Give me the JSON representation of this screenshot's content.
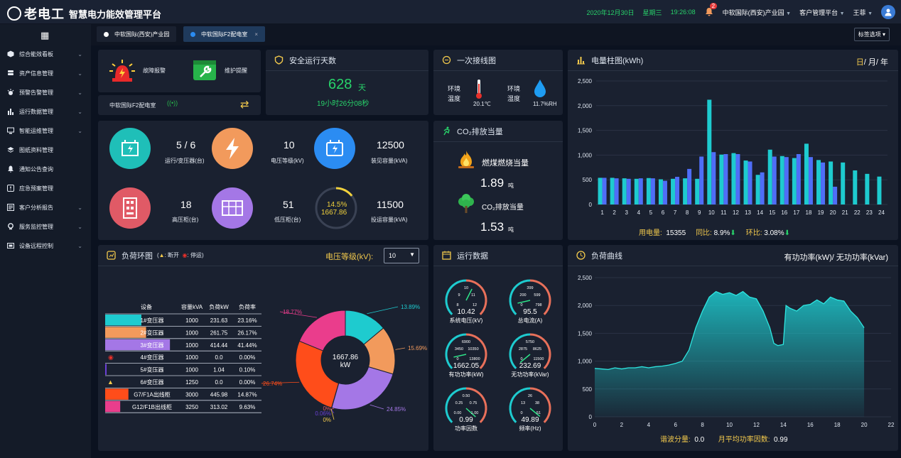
{
  "header": {
    "logo": "老电工",
    "app_title": "智慧电力能效管理平台",
    "date": "2020年12月30日",
    "weekday": "星期三",
    "time": "19:26:08",
    "notify_count": "2",
    "org": "中软国际(西安)产业园",
    "menu": "客户管理平台",
    "user": "王菲"
  },
  "sidebar": {
    "items": [
      {
        "label": "综合能效看板",
        "icon": "cube-icon"
      },
      {
        "label": "资产信息管理",
        "icon": "database-icon"
      },
      {
        "label": "预警告警管理",
        "icon": "alarm-icon"
      },
      {
        "label": "运行数据管理",
        "icon": "bar-chart-icon"
      },
      {
        "label": "智能运维管理",
        "icon": "monitor-icon"
      },
      {
        "label": "图纸资料管理",
        "icon": "layers-icon"
      },
      {
        "label": "通知公告查询",
        "icon": "bell-icon"
      },
      {
        "label": "应急预案管理",
        "icon": "emergency-icon"
      },
      {
        "label": "客户分析报告",
        "icon": "report-icon"
      },
      {
        "label": "服务监控管理",
        "icon": "service-icon"
      },
      {
        "label": "设备远程控制",
        "icon": "remote-control-icon"
      }
    ]
  },
  "tabs": [
    {
      "label": "中软国际(西安)产业园"
    },
    {
      "label": "中软国际F2配电室"
    }
  ],
  "tag_select": "标签选项",
  "alarm": {
    "fault": "故障报警",
    "maint": "维护提醒",
    "room": "中软国际F2配电室"
  },
  "safety": {
    "title": "安全运行天数",
    "days": "628",
    "unit": "天",
    "detail": "19小时26分08秒"
  },
  "oneline": {
    "title": "一次接线图",
    "temp_label": "环境温度",
    "temp": "20.1℃",
    "hum_label": "环境湿度",
    "hum": "11.7%RH"
  },
  "co2": {
    "title": "CO₂排放当量",
    "coal_label": "燃煤燃烧当量",
    "coal_value": "1.89",
    "coal_unit": "吨",
    "co2_label": "CO₂排放当量",
    "co2_value": "1.53",
    "co2_unit": "吨"
  },
  "stats": [
    {
      "value": "5 / 6",
      "label": "运行/变压器(台)",
      "color": "#1fbfb8"
    },
    {
      "value": "10",
      "label": "电压等级(kV)",
      "color": "#f29a5c"
    },
    {
      "value": "12500",
      "label": "装见容量(kVA)",
      "color": "#2b8cf2"
    },
    {
      "value": "18",
      "label": "高压柜(台)",
      "color": "#e05a66"
    },
    {
      "value": "51",
      "label": "低压柜(台)",
      "color": "#a477e6"
    },
    {
      "value": "11500",
      "label": "投运容量(kVA)",
      "color": "#ffffff"
    }
  ],
  "load_ring": {
    "pct": "14.5%",
    "pct_value": 14.5,
    "value": "1667.86"
  },
  "load_table": {
    "title": "负荷环图",
    "legend": {
      "open": "断开",
      "stop": "停运"
    },
    "voltage_label": "电压等级(kV):",
    "voltage_value": "10",
    "columns": [
      "设备",
      "容量kVA",
      "负荷kW",
      "负荷率"
    ],
    "rows": [
      {
        "name": "1#变压器",
        "cap": "1000",
        "load": "231.63",
        "rate": "23.16%",
        "color": "#1ecbcf",
        "fill": 23.16,
        "flag": ""
      },
      {
        "name": "2#变压器",
        "cap": "1000",
        "load": "261.75",
        "rate": "26.17%",
        "color": "#f29a5c",
        "fill": 26.17,
        "flag": ""
      },
      {
        "name": "3#变压器",
        "cap": "1000",
        "load": "414.44",
        "rate": "41.44%",
        "color": "#a477e6",
        "fill": 41.44,
        "flag": ""
      },
      {
        "name": "4#变压器",
        "cap": "1000",
        "load": "0.0",
        "rate": "0.00%",
        "color": "#e05a66",
        "fill": 0,
        "flag": "stop"
      },
      {
        "name": "5#变压器",
        "cap": "1000",
        "load": "1.04",
        "rate": "0.10%",
        "color": "#6a3fd6",
        "fill": 0.1,
        "flag": ""
      },
      {
        "name": "6#变压器",
        "cap": "1250",
        "load": "0.0",
        "rate": "0.00%",
        "color": "#f2c94c",
        "fill": 0,
        "flag": "open"
      },
      {
        "name": "G7/F1A出线柜",
        "cap": "3000",
        "load": "445.98",
        "rate": "14.87%",
        "color": "#ff4d1a",
        "fill": 14.87,
        "flag": ""
      },
      {
        "name": "G12/F1B出线柜",
        "cap": "3250",
        "load": "313.02",
        "rate": "9.63%",
        "color": "#ea3d8c",
        "fill": 9.63,
        "flag": ""
      }
    ]
  },
  "donut": {
    "center_value": "1667.86",
    "center_unit": "kW",
    "slices": [
      {
        "label": "13.89%",
        "value": 13.89,
        "color": "#1ecbcf"
      },
      {
        "label": "15.69%",
        "value": 15.69,
        "color": "#f29a5c"
      },
      {
        "label": "24.85%",
        "value": 24.85,
        "color": "#a477e6"
      },
      {
        "label": "0%",
        "value": 0,
        "color": "#e05a66"
      },
      {
        "label": "0.06%",
        "value": 0.06,
        "color": "#6a3fd6"
      },
      {
        "label": "0%",
        "value": 0,
        "color": "#f2c94c"
      },
      {
        "label": "26.74%",
        "value": 26.74,
        "color": "#ff4d1a"
      },
      {
        "label": "18.77%",
        "value": 18.77,
        "color": "#ea3d8c"
      }
    ]
  },
  "run_data": {
    "title": "运行数据",
    "gauges": [
      {
        "value": "10.42",
        "label": "系统电压(kV)",
        "ticks": [
          "10",
          "9",
          "11",
          "8",
          "12"
        ],
        "fraction": 0.6
      },
      {
        "value": "95.5",
        "label": "总电流(A)",
        "ticks": [
          "399",
          "200",
          "599",
          "0",
          "798"
        ],
        "fraction": 0.12
      },
      {
        "value": "1662.05",
        "label": "有功功率(kW)",
        "ticks": [
          "6900",
          "3450",
          "10350",
          "0",
          "13800"
        ],
        "fraction": 0.12
      },
      {
        "value": "232.69",
        "label": "无功功率(kVar)",
        "ticks": [
          "5750",
          "2875",
          "8625",
          "0",
          "11500"
        ],
        "fraction": 0.02
      },
      {
        "value": "0.99",
        "label": "功率因数",
        "ticks": [
          "0.50",
          "0.25",
          "0.75",
          "0.00",
          "1.00"
        ],
        "fraction": 0.99
      },
      {
        "value": "49.89",
        "label": "频率(Hz)",
        "ticks": [
          "26",
          "13",
          "38",
          "0",
          "51"
        ],
        "fraction": 0.98
      }
    ]
  },
  "chart_data": [
    {
      "type": "bar",
      "title": "电量柱图(kWh)",
      "periods": [
        "日",
        "月",
        "年"
      ],
      "categories": [
        "1",
        "2",
        "3",
        "4",
        "5",
        "6",
        "7",
        "8",
        "9",
        "10",
        "11",
        "12",
        "13",
        "14",
        "15",
        "16",
        "17",
        "18",
        "19",
        "20",
        "21",
        "22",
        "23",
        "24"
      ],
      "series": [
        {
          "color": "#1ecbcf",
          "values": [
            540,
            540,
            530,
            520,
            535,
            510,
            520,
            530,
            520,
            2120,
            1010,
            1040,
            890,
            600,
            1110,
            980,
            940,
            1230,
            900,
            870,
            850,
            690,
            620,
            565
          ]
        },
        {
          "color": "#4f6ef7",
          "values": [
            540,
            530,
            520,
            530,
            530,
            480,
            560,
            720,
            970,
            1060,
            1020,
            1020,
            870,
            650,
            970,
            960,
            1020,
            960,
            850,
            360,
            null,
            null,
            null,
            null
          ]
        }
      ],
      "ylim": [
        0,
        2500
      ],
      "yticks": [
        "2,500",
        "2,000",
        "1,500",
        "1,000",
        "500",
        "0"
      ],
      "footer": {
        "use_label": "用电量:",
        "use": "15355",
        "yoy_label": "同比:",
        "yoy": "8.9%",
        "mom_label": "环比:",
        "mom": "3.08%"
      }
    },
    {
      "type": "area",
      "title": "负荷曲线",
      "legend": "有功功率(kW)/ 无功功率(kVar)",
      "xlim": [
        0,
        22
      ],
      "xticks": [
        "0",
        "2",
        "4",
        "6",
        "8",
        "10",
        "12",
        "14",
        "16",
        "18",
        "20",
        "22"
      ],
      "ylim": [
        0,
        2500
      ],
      "yticks": [
        "2,500",
        "2,000",
        "1,500",
        "1,000",
        "500",
        "0"
      ],
      "x": [
        0,
        0.5,
        1,
        1.5,
        2,
        2.5,
        3,
        3.5,
        4,
        4.5,
        5,
        5.5,
        6,
        6.5,
        7,
        7.5,
        8,
        8.5,
        9,
        9.5,
        10,
        10.5,
        11,
        11.5,
        12,
        12.5,
        13,
        13.3,
        13.6,
        14,
        14.2,
        14.5,
        15,
        15.5,
        16,
        16.5,
        17,
        17.5,
        18,
        18.5,
        19,
        19.5,
        20
      ],
      "values": [
        870,
        860,
        850,
        880,
        860,
        880,
        880,
        900,
        880,
        900,
        910,
        930,
        960,
        1000,
        1200,
        1600,
        1900,
        2150,
        2250,
        2200,
        2230,
        2180,
        2250,
        2150,
        2120,
        1900,
        1600,
        1320,
        1280,
        1300,
        2000,
        1950,
        1900,
        2000,
        2020,
        2100,
        2030,
        2150,
        2100,
        2080,
        1900,
        1780,
        1600
      ],
      "footer": {
        "thd_label": "谐波分量:",
        "thd": "0.0",
        "pf_label": "月平均功率因数:",
        "pf": "0.99"
      }
    }
  ]
}
